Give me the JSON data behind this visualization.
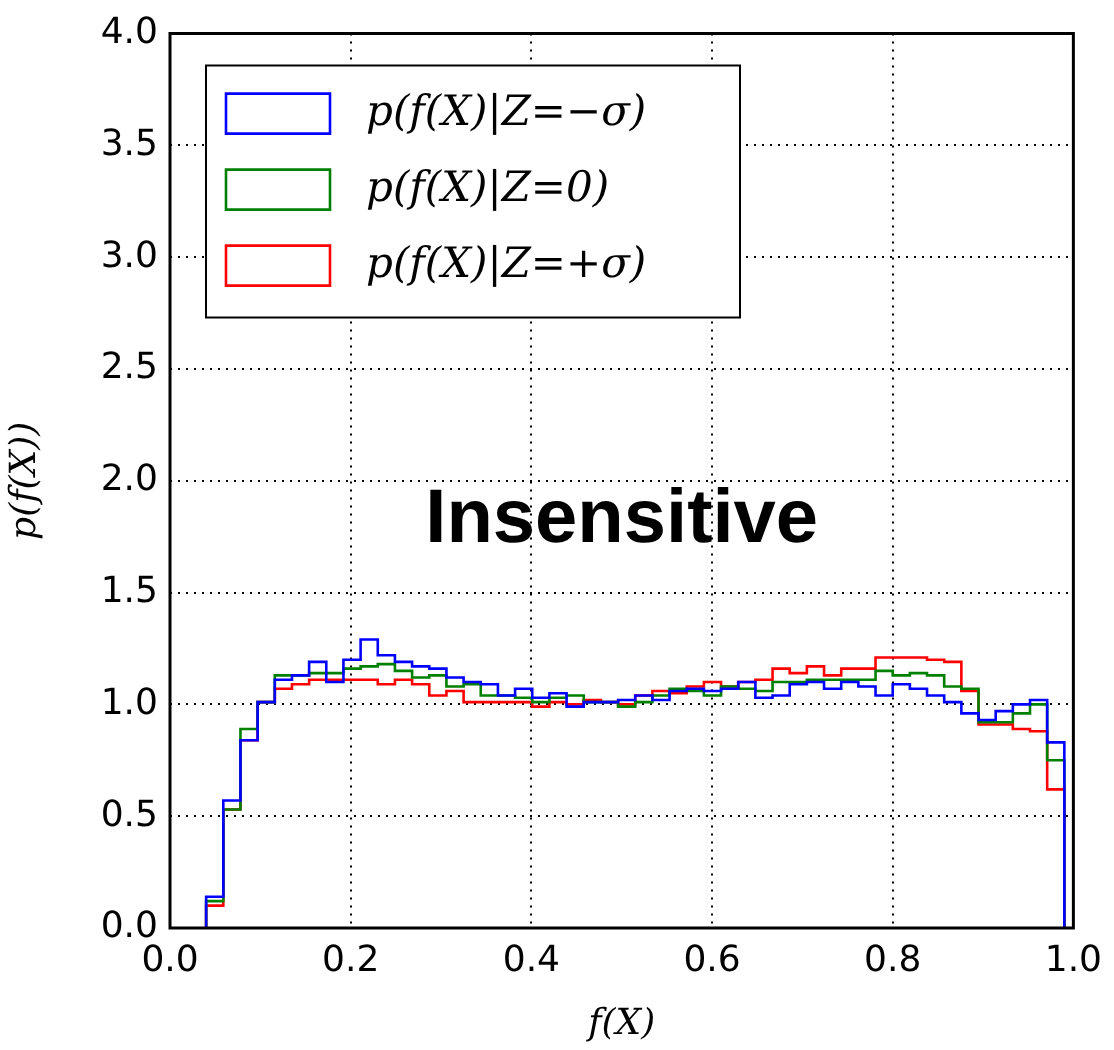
{
  "chart_data": {
    "type": "histogram",
    "xlabel": "f(X)",
    "ylabel": "p(f(X))",
    "annotations": [
      "Insensitive"
    ],
    "bins": [
      0.04,
      0.059,
      0.078,
      0.097,
      0.116,
      0.135,
      0.154,
      0.173,
      0.192,
      0.211,
      0.23,
      0.249,
      0.268,
      0.287,
      0.306,
      0.325,
      0.344,
      0.363,
      0.382,
      0.401,
      0.42,
      0.439,
      0.458,
      0.477,
      0.496,
      0.515,
      0.534,
      0.553,
      0.572,
      0.591,
      0.61,
      0.629,
      0.648,
      0.667,
      0.686,
      0.705,
      0.724,
      0.743,
      0.762,
      0.781,
      0.8,
      0.819,
      0.838,
      0.857,
      0.876,
      0.895,
      0.914,
      0.933,
      0.952,
      0.971,
      0.99
    ],
    "series": [
      {
        "name": "p(f(X)|Z=−σ)",
        "color": "#0000ff",
        "values": [
          0.14,
          0.57,
          0.84,
          1.01,
          1.11,
          1.13,
          1.19,
          1.1,
          1.2,
          1.29,
          1.22,
          1.19,
          1.17,
          1.16,
          1.12,
          1.1,
          1.09,
          1.04,
          1.07,
          1.03,
          1.05,
          0.99,
          1.01,
          1.01,
          1.02,
          1.04,
          1.02,
          1.06,
          1.07,
          1.06,
          1.07,
          1.1,
          1.03,
          1.04,
          1.09,
          1.1,
          1.07,
          1.1,
          1.08,
          1.04,
          1.09,
          1.07,
          1.04,
          1.01,
          0.96,
          0.93,
          0.97,
          1.0,
          1.02,
          0.83
        ]
      },
      {
        "name": "p(f(X)|Z=0)",
        "color": "#008000",
        "values": [
          0.12,
          0.53,
          0.89,
          1.01,
          1.13,
          1.13,
          1.14,
          1.14,
          1.16,
          1.17,
          1.18,
          1.15,
          1.12,
          1.13,
          1.08,
          1.09,
          1.04,
          1.04,
          1.03,
          1.01,
          1.03,
          1.04,
          1.01,
          1.01,
          0.99,
          1.01,
          1.04,
          1.07,
          1.06,
          1.04,
          1.08,
          1.07,
          1.06,
          1.1,
          1.1,
          1.11,
          1.11,
          1.11,
          1.11,
          1.15,
          1.13,
          1.14,
          1.13,
          1.08,
          1.07,
          0.92,
          0.92,
          0.96,
          1.0,
          0.75
        ]
      },
      {
        "name": "p(f(X)|Z=+σ)",
        "color": "#ff0000",
        "values": [
          0.1,
          0.53,
          0.84,
          1.01,
          1.07,
          1.09,
          1.11,
          1.11,
          1.11,
          1.11,
          1.09,
          1.11,
          1.09,
          1.04,
          1.06,
          1.01,
          1.01,
          1.01,
          1.01,
          0.99,
          1.01,
          1.0,
          1.02,
          1.01,
          1.0,
          1.04,
          1.06,
          1.05,
          1.08,
          1.1,
          1.08,
          1.1,
          1.11,
          1.16,
          1.14,
          1.17,
          1.13,
          1.16,
          1.16,
          1.21,
          1.21,
          1.21,
          1.2,
          1.19,
          1.06,
          0.91,
          0.91,
          0.89,
          0.88,
          0.62
        ]
      }
    ],
    "xlim": [
      0,
      1
    ],
    "ylim": [
      0,
      4
    ],
    "xticks": [
      {
        "value": 0,
        "label": "0.0"
      },
      {
        "value": 0.2,
        "label": "0.2"
      },
      {
        "value": 0.4,
        "label": "0.4"
      },
      {
        "value": 0.6,
        "label": "0.6"
      },
      {
        "value": 0.8,
        "label": "0.8"
      },
      {
        "value": 1,
        "label": "1.0"
      }
    ],
    "yticks": [
      {
        "value": 0,
        "label": "0.0"
      },
      {
        "value": 0.5,
        "label": "0.5"
      },
      {
        "value": 1,
        "label": "1.0"
      },
      {
        "value": 1.5,
        "label": "1.5"
      },
      {
        "value": 2,
        "label": "2.0"
      },
      {
        "value": 2.5,
        "label": "2.5"
      },
      {
        "value": 3,
        "label": "3.0"
      },
      {
        "value": 3.5,
        "label": "3.5"
      },
      {
        "value": 4,
        "label": "4.0"
      }
    ],
    "grid": true,
    "legend": "top left"
  }
}
